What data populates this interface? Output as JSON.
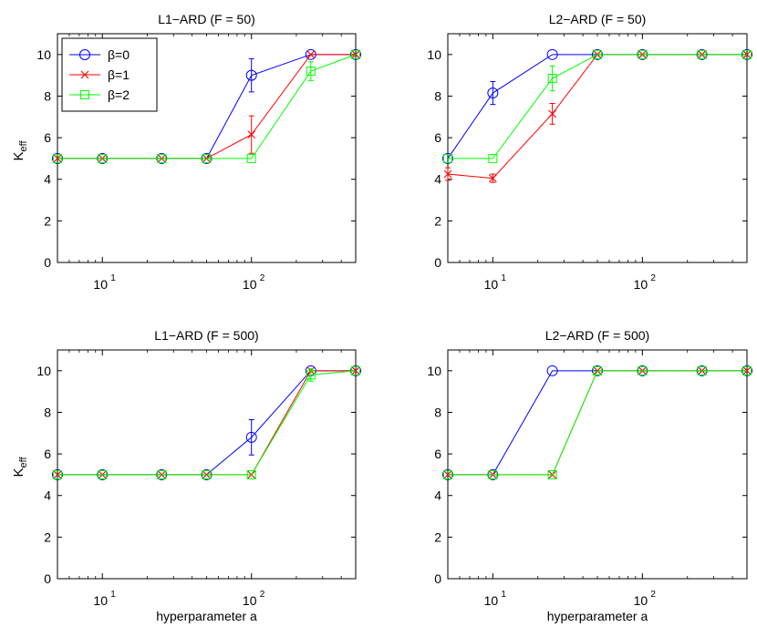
{
  "figure": {
    "ylabel_main": "K",
    "ylabel_sub": "eff",
    "xlabel": "hyperparameter a"
  },
  "legend": {
    "entries": [
      {
        "label": "β=0",
        "series_index": 0
      },
      {
        "label": "β=1",
        "series_index": 1
      },
      {
        "label": "β=2",
        "series_index": 2
      }
    ]
  },
  "chart_data": [
    {
      "type": "line",
      "title": "L1−ARD (F = 50)",
      "xscale": "log",
      "x": [
        5,
        10,
        25,
        50,
        100,
        250,
        500
      ],
      "xlim": [
        5,
        500
      ],
      "ylim": [
        0,
        11
      ],
      "yticks": [
        0,
        2,
        4,
        6,
        8,
        10
      ],
      "xticks": [
        {
          "base": "10",
          "exp": "1",
          "value": 10
        },
        {
          "base": "10",
          "exp": "2",
          "value": 100
        }
      ],
      "show_ylabel": true,
      "show_xlabel": false,
      "legend": "top-left",
      "series": [
        {
          "name": "β=0",
          "color": "#0000ff",
          "marker": "circle",
          "values": [
            5,
            5,
            5,
            5,
            9.0,
            10,
            10
          ],
          "errors": [
            0,
            0,
            0,
            0,
            0.8,
            0,
            0
          ]
        },
        {
          "name": "β=1",
          "color": "#ff0000",
          "marker": "x",
          "values": [
            5,
            5,
            5,
            5,
            6.15,
            10,
            10
          ],
          "errors": [
            0,
            0,
            0,
            0,
            0.9,
            0,
            0
          ]
        },
        {
          "name": "β=2",
          "color": "#00ff00",
          "marker": "square",
          "values": [
            5,
            5,
            5,
            5,
            5.0,
            9.2,
            10
          ],
          "errors": [
            0,
            0,
            0,
            0,
            0,
            0.45,
            0
          ]
        }
      ]
    },
    {
      "type": "line",
      "title": "L2−ARD (F = 50)",
      "xscale": "log",
      "x": [
        5,
        10,
        25,
        50,
        100,
        250,
        500
      ],
      "xlim": [
        5,
        500
      ],
      "ylim": [
        0,
        11
      ],
      "yticks": [
        0,
        2,
        4,
        6,
        8,
        10
      ],
      "xticks": [
        {
          "base": "10",
          "exp": "1",
          "value": 10
        },
        {
          "base": "10",
          "exp": "2",
          "value": 100
        }
      ],
      "show_ylabel": false,
      "show_xlabel": false,
      "legend": "none",
      "series": [
        {
          "name": "β=0",
          "color": "#0000ff",
          "marker": "circle",
          "values": [
            5,
            8.15,
            10,
            10,
            10,
            10,
            10
          ],
          "errors": [
            0,
            0.55,
            0,
            0,
            0,
            0,
            0
          ]
        },
        {
          "name": "β=1",
          "color": "#ff0000",
          "marker": "x",
          "values": [
            4.25,
            4.05,
            7.15,
            10,
            10,
            10,
            10
          ],
          "errors": [
            0.3,
            0.2,
            0.5,
            0,
            0,
            0,
            0
          ]
        },
        {
          "name": "β=2",
          "color": "#00ff00",
          "marker": "square",
          "values": [
            5,
            5,
            8.85,
            10,
            10,
            10,
            10
          ],
          "errors": [
            0,
            0,
            0.6,
            0,
            0,
            0,
            0
          ]
        }
      ]
    },
    {
      "type": "line",
      "title": "L1−ARD (F = 500)",
      "xscale": "log",
      "x": [
        5,
        10,
        25,
        50,
        100,
        250,
        500
      ],
      "xlim": [
        5,
        500
      ],
      "ylim": [
        0,
        11
      ],
      "yticks": [
        0,
        2,
        4,
        6,
        8,
        10
      ],
      "xticks": [
        {
          "base": "10",
          "exp": "1",
          "value": 10
        },
        {
          "base": "10",
          "exp": "2",
          "value": 100
        }
      ],
      "show_ylabel": true,
      "show_xlabel": true,
      "legend": "none",
      "series": [
        {
          "name": "β=0",
          "color": "#0000ff",
          "marker": "circle",
          "values": [
            5,
            5,
            5,
            5,
            6.8,
            10,
            10
          ],
          "errors": [
            0,
            0,
            0,
            0,
            0.85,
            0,
            0
          ]
        },
        {
          "name": "β=1",
          "color": "#ff0000",
          "marker": "x",
          "values": [
            5,
            5,
            5,
            5,
            5,
            10,
            10
          ],
          "errors": [
            0,
            0,
            0,
            0,
            0,
            0,
            0
          ]
        },
        {
          "name": "β=2",
          "color": "#00ff00",
          "marker": "square",
          "values": [
            5,
            5,
            5,
            5,
            5,
            9.8,
            10
          ],
          "errors": [
            0,
            0,
            0,
            0,
            0,
            0.3,
            0
          ]
        }
      ]
    },
    {
      "type": "line",
      "title": "L2−ARD (F = 500)",
      "xscale": "log",
      "x": [
        5,
        10,
        25,
        50,
        100,
        250,
        500
      ],
      "xlim": [
        5,
        500
      ],
      "ylim": [
        0,
        11
      ],
      "yticks": [
        0,
        2,
        4,
        6,
        8,
        10
      ],
      "xticks": [
        {
          "base": "10",
          "exp": "1",
          "value": 10
        },
        {
          "base": "10",
          "exp": "2",
          "value": 100
        }
      ],
      "show_ylabel": false,
      "show_xlabel": true,
      "legend": "none",
      "series": [
        {
          "name": "β=0",
          "color": "#0000ff",
          "marker": "circle",
          "values": [
            5,
            5,
            10,
            10,
            10,
            10,
            10
          ],
          "errors": [
            0,
            0,
            0,
            0,
            0,
            0,
            0
          ]
        },
        {
          "name": "β=1",
          "color": "#ff0000",
          "marker": "x",
          "values": [
            5,
            5,
            5,
            10,
            10,
            10,
            10
          ],
          "errors": [
            0,
            0,
            0,
            0,
            0,
            0,
            0
          ]
        },
        {
          "name": "β=2",
          "color": "#00ff00",
          "marker": "square",
          "values": [
            5,
            5,
            5,
            10,
            10,
            10,
            10
          ],
          "errors": [
            0,
            0,
            0,
            0,
            0,
            0,
            0
          ]
        }
      ]
    }
  ]
}
